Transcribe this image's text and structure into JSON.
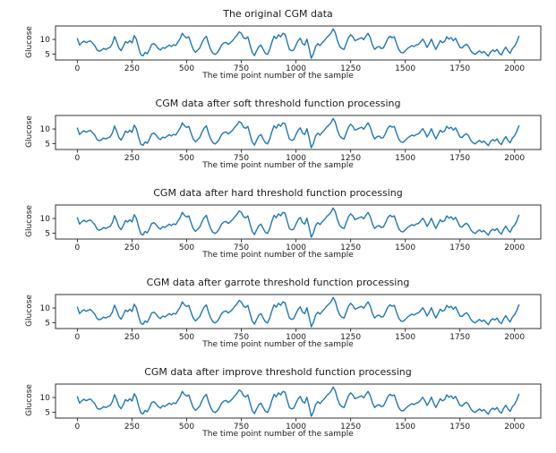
{
  "figure": {
    "background": "#ffffff",
    "text_color": "#1a1a1a",
    "spine_color": "#333333"
  },
  "chart_data": {
    "type": "line",
    "line_color": "#1f77b4",
    "xlabel": "The time point number of the sample",
    "ylabel": "Glucose",
    "xticks": [
      0,
      250,
      500,
      750,
      1000,
      1250,
      1500,
      1750,
      2000
    ],
    "yticks": [
      5,
      10
    ],
    "xlim": [
      -100,
      2120
    ],
    "ylim": [
      3.0,
      14.6
    ],
    "grid": false,
    "legend": null,
    "x_start": 0,
    "x_step": 10,
    "subplots": [
      {
        "title": "The original CGM data"
      },
      {
        "title": "CGM data after soft threshold function processing"
      },
      {
        "title": "CGM data after hard threshold function processing"
      },
      {
        "title": "CGM data after garrote threshold function processing"
      },
      {
        "title": "CGM data after improve threshold function processing"
      }
    ],
    "values": [
      10.3,
      8.1,
      8.9,
      9.4,
      8.9,
      9.3,
      9.5,
      8.7,
      7.9,
      6.4,
      6.0,
      6.3,
      6.9,
      6.6,
      7.0,
      7.3,
      8.6,
      11.0,
      9.2,
      7.1,
      6.2,
      7.6,
      9.3,
      8.8,
      9.6,
      8.8,
      11.3,
      10.1,
      7.2,
      4.8,
      4.4,
      5.6,
      5.1,
      6.6,
      8.3,
      8.6,
      7.9,
      6.9,
      6.4,
      7.2,
      7.0,
      7.5,
      8.1,
      7.6,
      8.2,
      7.9,
      9.1,
      10.3,
      12.1,
      11.1,
      10.5,
      10.9,
      8.6,
      6.6,
      5.6,
      6.3,
      7.1,
      8.9,
      10.3,
      11.1,
      8.6,
      6.6,
      5.3,
      4.9,
      5.5,
      6.6,
      8.1,
      8.8,
      9.0,
      8.3,
      8.9,
      9.6,
      10.6,
      11.4,
      12.6,
      12.1,
      10.6,
      10.2,
      10.9,
      8.1,
      5.6,
      4.5,
      6.1,
      7.6,
      8.1,
      6.6,
      5.3,
      4.9,
      6.6,
      9.1,
      11.1,
      10.3,
      11.6,
      10.9,
      12.1,
      11.8,
      9.1,
      6.6,
      6.1,
      6.4,
      8.1,
      9.6,
      10.4,
      8.6,
      8.1,
      10.1,
      7.1,
      3.6,
      5.1,
      7.6,
      8.6,
      7.9,
      8.9,
      9.6,
      10.6,
      11.3,
      12.1,
      13.6,
      12.3,
      9.6,
      7.6,
      6.9,
      6.6,
      8.6,
      10.6,
      11.6,
      10.9,
      9.6,
      9.9,
      10.3,
      10.6,
      9.9,
      11.1,
      12.1,
      10.6,
      8.1,
      6.6,
      7.3,
      7.6,
      6.9,
      7.1,
      8.6,
      10.3,
      11.1,
      10.6,
      10.9,
      8.6,
      6.6,
      5.6,
      5.4,
      6.1,
      6.9,
      7.4,
      7.9,
      7.6,
      8.1,
      8.3,
      9.1,
      10.1,
      8.9,
      7.3,
      8.6,
      10.1,
      8.1,
      6.6,
      8.1,
      9.6,
      8.9,
      9.3,
      10.9,
      10.1,
      10.6,
      9.6,
      10.4,
      8.9,
      7.3,
      7.1,
      7.9,
      8.4,
      7.6,
      6.1,
      5.3,
      4.9,
      5.6,
      6.1,
      5.4,
      5.9,
      5.1,
      4.3,
      5.7,
      6.4,
      5.9,
      6.6,
      5.3,
      4.7,
      6.3,
      7.4,
      6.1,
      5.3,
      6.9,
      7.7,
      9.1,
      11.1
    ]
  }
}
